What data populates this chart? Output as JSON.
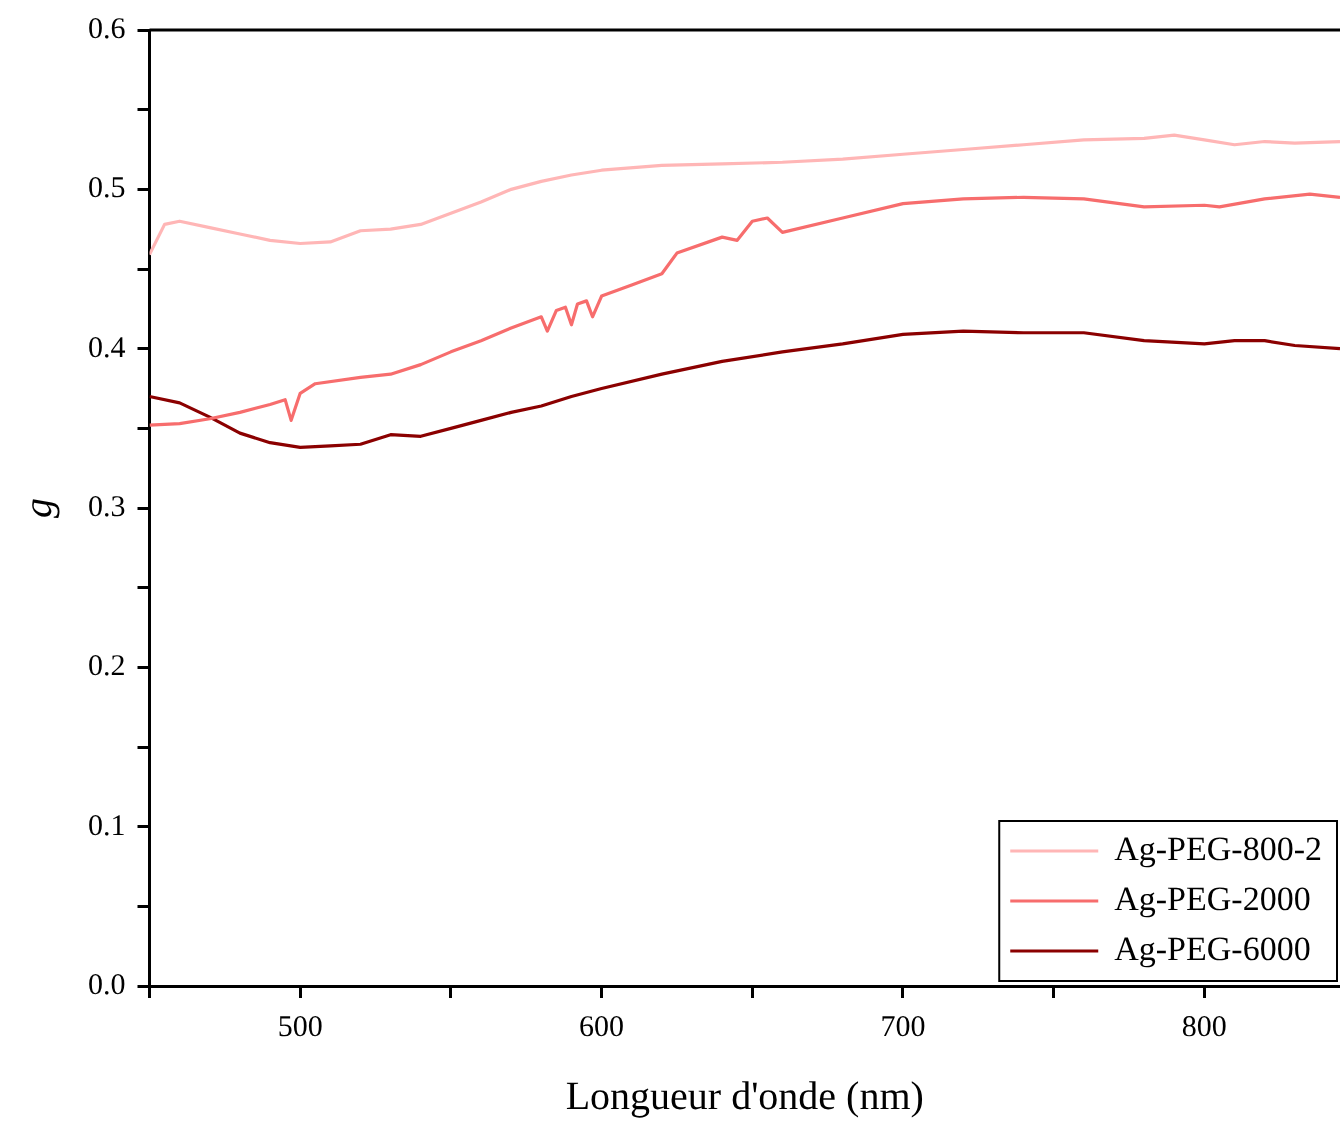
{
  "chart_data": {
    "type": "line",
    "xlabel": "Longueur d'onde (nm)",
    "ylabel": "g",
    "xlim": [
      450,
      845
    ],
    "xticks": [
      {
        "value": 450,
        "label": null
      },
      500,
      {
        "value": 550,
        "label": null
      },
      600,
      {
        "value": 650,
        "label": null
      },
      700,
      {
        "value": 750,
        "label": null
      },
      800
    ],
    "ylim": [
      0,
      0.6
    ],
    "yticks": [
      {
        "value": 0,
        "label": "0.0"
      },
      {
        "value": 0.05,
        "label": null
      },
      0.1,
      {
        "value": 0.15,
        "label": null
      },
      0.2,
      {
        "value": 0.25,
        "label": null
      },
      0.3,
      {
        "value": 0.35,
        "label": null
      },
      0.4,
      {
        "value": 0.45,
        "label": null
      },
      0.5,
      {
        "value": 0.55,
        "label": null
      },
      0.6
    ],
    "grid": false,
    "legend": "bottom right",
    "series": [
      {
        "name": "Ag-PEG-800-2",
        "color": "#ffb6b6",
        "x": [
          450,
          455,
          460,
          470,
          480,
          490,
          500,
          510,
          520,
          530,
          540,
          550,
          560,
          570,
          580,
          590,
          600,
          620,
          640,
          660,
          680,
          700,
          720,
          740,
          760,
          780,
          790,
          800,
          810,
          820,
          830,
          845
        ],
        "values": [
          0.459,
          0.478,
          0.48,
          0.476,
          0.472,
          0.468,
          0.466,
          0.467,
          0.474,
          0.475,
          0.478,
          0.485,
          0.492,
          0.5,
          0.505,
          0.509,
          0.512,
          0.515,
          0.516,
          0.517,
          0.519,
          0.522,
          0.525,
          0.528,
          0.531,
          0.532,
          0.534,
          0.531,
          0.528,
          0.53,
          0.529,
          0.53
        ]
      },
      {
        "name": "Ag-PEG-2000",
        "color": "#f76d6d",
        "x": [
          450,
          460,
          470,
          480,
          490,
          495,
          497,
          500,
          505,
          520,
          530,
          540,
          550,
          560,
          570,
          580,
          582,
          585,
          588,
          590,
          592,
          595,
          597,
          600,
          610,
          620,
          625,
          640,
          645,
          650,
          655,
          660,
          680,
          700,
          720,
          740,
          760,
          780,
          800,
          805,
          820,
          835,
          845
        ],
        "values": [
          0.352,
          0.353,
          0.356,
          0.36,
          0.365,
          0.368,
          0.355,
          0.372,
          0.378,
          0.382,
          0.384,
          0.39,
          0.398,
          0.405,
          0.413,
          0.42,
          0.411,
          0.424,
          0.426,
          0.415,
          0.428,
          0.43,
          0.42,
          0.433,
          0.44,
          0.447,
          0.46,
          0.47,
          0.468,
          0.48,
          0.482,
          0.473,
          0.482,
          0.491,
          0.494,
          0.495,
          0.494,
          0.489,
          0.49,
          0.489,
          0.494,
          0.497,
          0.495
        ]
      },
      {
        "name": "Ag-PEG-6000",
        "color": "#8b0000",
        "x": [
          450,
          460,
          470,
          480,
          490,
          500,
          510,
          520,
          530,
          540,
          550,
          560,
          570,
          580,
          590,
          600,
          620,
          640,
          660,
          680,
          700,
          720,
          740,
          760,
          780,
          800,
          810,
          820,
          830,
          845
        ],
        "values": [
          0.37,
          0.366,
          0.357,
          0.347,
          0.341,
          0.338,
          0.339,
          0.34,
          0.346,
          0.345,
          0.35,
          0.355,
          0.36,
          0.364,
          0.37,
          0.375,
          0.384,
          0.392,
          0.398,
          0.403,
          0.409,
          0.411,
          0.41,
          0.41,
          0.405,
          0.403,
          0.405,
          0.405,
          0.402,
          0.4
        ]
      }
    ]
  }
}
